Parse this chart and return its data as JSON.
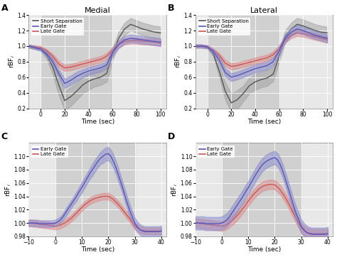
{
  "panel_A": {
    "title": "Medial",
    "label": "A",
    "ylabel": "rBF$_i$",
    "xlabel": "Time (sec)",
    "xlim": [
      -10,
      105
    ],
    "ylim": [
      0.2,
      1.4
    ],
    "yticks": [
      0.2,
      0.4,
      0.6,
      0.8,
      1.0,
      1.2,
      1.4
    ],
    "xticks": [
      0,
      20,
      40,
      60,
      80,
      100
    ],
    "shaded_region": [
      0,
      60
    ],
    "has_gray": true,
    "gray_x": [
      -10,
      -5,
      0,
      5,
      10,
      15,
      20,
      25,
      30,
      35,
      40,
      45,
      50,
      55,
      60,
      65,
      70,
      75,
      80,
      85,
      90,
      95,
      100
    ],
    "gray_mean": [
      1.0,
      0.98,
      0.96,
      0.88,
      0.73,
      0.5,
      0.3,
      0.35,
      0.42,
      0.5,
      0.55,
      0.58,
      0.6,
      0.65,
      0.9,
      1.1,
      1.22,
      1.28,
      1.25,
      1.22,
      1.2,
      1.18,
      1.17
    ],
    "gray_hi": [
      1.02,
      1.0,
      0.98,
      0.93,
      0.82,
      0.63,
      0.42,
      0.47,
      0.53,
      0.61,
      0.66,
      0.68,
      0.7,
      0.76,
      0.98,
      1.18,
      1.3,
      1.36,
      1.33,
      1.3,
      1.28,
      1.26,
      1.25
    ],
    "gray_lo": [
      0.98,
      0.96,
      0.94,
      0.83,
      0.64,
      0.37,
      0.18,
      0.23,
      0.31,
      0.39,
      0.44,
      0.48,
      0.5,
      0.54,
      0.82,
      1.02,
      1.14,
      1.2,
      1.17,
      1.14,
      1.12,
      1.1,
      1.09
    ],
    "blue_x": [
      -10,
      -5,
      0,
      5,
      10,
      15,
      20,
      25,
      30,
      35,
      40,
      45,
      50,
      55,
      60,
      65,
      70,
      75,
      80,
      85,
      90,
      95,
      100
    ],
    "blue_mean": [
      1.0,
      0.98,
      0.96,
      0.9,
      0.8,
      0.65,
      0.52,
      0.56,
      0.61,
      0.65,
      0.68,
      0.7,
      0.72,
      0.76,
      0.92,
      1.02,
      1.08,
      1.1,
      1.09,
      1.08,
      1.07,
      1.06,
      1.05
    ],
    "blue_hi": [
      1.02,
      1.0,
      0.98,
      0.93,
      0.84,
      0.7,
      0.58,
      0.62,
      0.67,
      0.7,
      0.73,
      0.75,
      0.77,
      0.81,
      0.97,
      1.07,
      1.13,
      1.15,
      1.14,
      1.13,
      1.12,
      1.11,
      1.1
    ],
    "blue_lo": [
      0.98,
      0.96,
      0.94,
      0.87,
      0.76,
      0.6,
      0.46,
      0.5,
      0.55,
      0.6,
      0.63,
      0.65,
      0.67,
      0.71,
      0.87,
      0.97,
      1.03,
      1.05,
      1.04,
      1.03,
      1.02,
      1.01,
      1.0
    ],
    "red_x": [
      -10,
      -5,
      0,
      5,
      10,
      15,
      20,
      25,
      30,
      35,
      40,
      45,
      50,
      55,
      60,
      65,
      70,
      75,
      80,
      85,
      90,
      95,
      100
    ],
    "red_mean": [
      1.0,
      0.99,
      0.98,
      0.94,
      0.87,
      0.77,
      0.72,
      0.73,
      0.75,
      0.77,
      0.79,
      0.81,
      0.83,
      0.87,
      0.95,
      1.02,
      1.06,
      1.07,
      1.07,
      1.06,
      1.06,
      1.05,
      1.04
    ],
    "red_hi": [
      1.02,
      1.01,
      1.0,
      0.96,
      0.9,
      0.81,
      0.76,
      0.77,
      0.79,
      0.81,
      0.83,
      0.85,
      0.87,
      0.91,
      0.99,
      1.06,
      1.1,
      1.11,
      1.11,
      1.1,
      1.1,
      1.09,
      1.08
    ],
    "red_lo": [
      0.98,
      0.97,
      0.96,
      0.92,
      0.84,
      0.73,
      0.68,
      0.69,
      0.71,
      0.73,
      0.75,
      0.77,
      0.79,
      0.83,
      0.91,
      0.98,
      1.02,
      1.03,
      1.03,
      1.02,
      1.02,
      1.01,
      1.0
    ]
  },
  "panel_B": {
    "title": "Lateral",
    "label": "B",
    "ylabel": "rBF$_i$",
    "xlabel": "Time (sec)",
    "xlim": [
      -10,
      105
    ],
    "ylim": [
      0.2,
      1.4
    ],
    "yticks": [
      0.2,
      0.4,
      0.6,
      0.8,
      1.0,
      1.2,
      1.4
    ],
    "xticks": [
      0,
      20,
      40,
      60,
      80,
      100
    ],
    "shaded_region": [
      0,
      60
    ],
    "has_gray": true,
    "gray_x": [
      -10,
      -5,
      0,
      5,
      10,
      15,
      20,
      25,
      30,
      35,
      40,
      45,
      50,
      55,
      60,
      65,
      70,
      75,
      80,
      85,
      90,
      95,
      100
    ],
    "gray_mean": [
      1.0,
      1.0,
      0.99,
      0.9,
      0.68,
      0.42,
      0.27,
      0.31,
      0.39,
      0.49,
      0.54,
      0.57,
      0.59,
      0.64,
      0.87,
      1.12,
      1.22,
      1.28,
      1.26,
      1.23,
      1.2,
      1.18,
      1.17
    ],
    "gray_hi": [
      1.02,
      1.02,
      1.01,
      0.93,
      0.75,
      0.53,
      0.39,
      0.43,
      0.49,
      0.59,
      0.64,
      0.67,
      0.69,
      0.73,
      0.94,
      1.2,
      1.3,
      1.36,
      1.34,
      1.31,
      1.28,
      1.26,
      1.25
    ],
    "gray_lo": [
      0.98,
      0.98,
      0.97,
      0.87,
      0.61,
      0.31,
      0.15,
      0.19,
      0.29,
      0.39,
      0.44,
      0.47,
      0.49,
      0.55,
      0.8,
      1.04,
      1.14,
      1.2,
      1.18,
      1.15,
      1.12,
      1.1,
      1.09
    ],
    "blue_x": [
      -10,
      -5,
      0,
      5,
      10,
      15,
      20,
      25,
      30,
      35,
      40,
      45,
      50,
      55,
      60,
      65,
      70,
      75,
      80,
      85,
      90,
      95,
      100
    ],
    "blue_mean": [
      1.0,
      1.0,
      0.99,
      0.93,
      0.82,
      0.66,
      0.6,
      0.62,
      0.65,
      0.68,
      0.71,
      0.73,
      0.75,
      0.8,
      0.94,
      1.1,
      1.18,
      1.22,
      1.2,
      1.17,
      1.14,
      1.12,
      1.1
    ],
    "blue_hi": [
      1.02,
      1.02,
      1.01,
      0.96,
      0.86,
      0.71,
      0.65,
      0.67,
      0.7,
      0.73,
      0.76,
      0.78,
      0.8,
      0.85,
      0.99,
      1.15,
      1.23,
      1.27,
      1.25,
      1.22,
      1.19,
      1.17,
      1.15
    ],
    "blue_lo": [
      0.98,
      0.98,
      0.97,
      0.9,
      0.78,
      0.61,
      0.55,
      0.57,
      0.6,
      0.63,
      0.66,
      0.68,
      0.7,
      0.75,
      0.89,
      1.05,
      1.13,
      1.17,
      1.15,
      1.12,
      1.09,
      1.07,
      1.05
    ],
    "red_x": [
      -10,
      -5,
      0,
      5,
      10,
      15,
      20,
      25,
      30,
      35,
      40,
      45,
      50,
      55,
      60,
      65,
      70,
      75,
      80,
      85,
      90,
      95,
      100
    ],
    "red_mean": [
      1.0,
      1.0,
      0.99,
      0.95,
      0.88,
      0.78,
      0.74,
      0.75,
      0.77,
      0.79,
      0.81,
      0.83,
      0.85,
      0.89,
      0.97,
      1.08,
      1.14,
      1.17,
      1.16,
      1.14,
      1.12,
      1.1,
      1.08
    ],
    "red_hi": [
      1.02,
      1.02,
      1.01,
      0.97,
      0.91,
      0.82,
      0.78,
      0.79,
      0.81,
      0.83,
      0.85,
      0.87,
      0.89,
      0.93,
      1.01,
      1.12,
      1.18,
      1.21,
      1.2,
      1.18,
      1.16,
      1.14,
      1.12
    ],
    "red_lo": [
      0.98,
      0.98,
      0.97,
      0.93,
      0.85,
      0.74,
      0.7,
      0.71,
      0.73,
      0.75,
      0.77,
      0.79,
      0.81,
      0.85,
      0.93,
      1.04,
      1.1,
      1.13,
      1.12,
      1.1,
      1.08,
      1.06,
      1.04
    ]
  },
  "panel_C": {
    "title": "",
    "label": "C",
    "ylabel": "rBF$_i$",
    "xlabel": "Time (sec)",
    "xlim": [
      -10,
      42
    ],
    "ylim": [
      0.98,
      1.12
    ],
    "yticks": [
      0.98,
      1.0,
      1.02,
      1.04,
      1.06,
      1.08,
      1.1
    ],
    "xticks": [
      -10,
      0,
      10,
      20,
      30,
      40
    ],
    "shaded_region": [
      0,
      30
    ],
    "has_gray": false,
    "blue_x": [
      -10,
      -9,
      -8,
      -7,
      -6,
      -5,
      -4,
      -3,
      -2,
      -1,
      0,
      1,
      2,
      3,
      4,
      5,
      6,
      7,
      8,
      9,
      10,
      11,
      12,
      13,
      14,
      15,
      16,
      17,
      18,
      19,
      20,
      21,
      22,
      23,
      24,
      25,
      26,
      27,
      28,
      29,
      30,
      31,
      32,
      33,
      34,
      35,
      36,
      37,
      38,
      39,
      40
    ],
    "blue_mean": [
      1.0,
      1.0,
      1.0,
      1.0,
      0.999,
      0.999,
      0.999,
      0.999,
      0.999,
      0.999,
      1.0,
      1.002,
      1.005,
      1.01,
      1.016,
      1.022,
      1.028,
      1.034,
      1.04,
      1.047,
      1.053,
      1.06,
      1.067,
      1.074,
      1.08,
      1.086,
      1.092,
      1.097,
      1.1,
      1.103,
      1.104,
      1.1,
      1.092,
      1.082,
      1.07,
      1.058,
      1.045,
      1.032,
      1.02,
      1.01,
      1.0,
      0.994,
      0.99,
      0.988,
      0.987,
      0.987,
      0.987,
      0.987,
      0.987,
      0.987,
      0.988
    ],
    "blue_hi": [
      1.005,
      1.005,
      1.005,
      1.005,
      1.004,
      1.004,
      1.004,
      1.004,
      1.004,
      1.004,
      1.005,
      1.007,
      1.01,
      1.015,
      1.022,
      1.028,
      1.034,
      1.04,
      1.047,
      1.054,
      1.061,
      1.068,
      1.075,
      1.082,
      1.089,
      1.095,
      1.101,
      1.106,
      1.11,
      1.113,
      1.114,
      1.11,
      1.102,
      1.092,
      1.08,
      1.067,
      1.054,
      1.041,
      1.029,
      1.018,
      1.008,
      1.002,
      0.998,
      0.996,
      0.995,
      0.995,
      0.995,
      0.995,
      0.995,
      0.995,
      0.996
    ],
    "blue_lo": [
      0.995,
      0.995,
      0.995,
      0.995,
      0.994,
      0.994,
      0.994,
      0.994,
      0.994,
      0.994,
      0.995,
      0.997,
      1.0,
      1.005,
      1.01,
      1.016,
      1.022,
      1.028,
      1.033,
      1.04,
      1.045,
      1.052,
      1.059,
      1.066,
      1.071,
      1.077,
      1.083,
      1.088,
      1.09,
      1.093,
      1.094,
      1.09,
      1.082,
      1.072,
      1.06,
      1.049,
      1.036,
      1.023,
      1.011,
      1.002,
      0.992,
      0.986,
      0.982,
      0.98,
      0.979,
      0.979,
      0.979,
      0.979,
      0.979,
      0.979,
      0.98
    ],
    "red_x": [
      -10,
      -9,
      -8,
      -7,
      -6,
      -5,
      -4,
      -3,
      -2,
      -1,
      0,
      1,
      2,
      3,
      4,
      5,
      6,
      7,
      8,
      9,
      10,
      11,
      12,
      13,
      14,
      15,
      16,
      17,
      18,
      19,
      20,
      21,
      22,
      23,
      24,
      25,
      26,
      27,
      28,
      29,
      30,
      31,
      32,
      33,
      34,
      35,
      36,
      37,
      38,
      39,
      40
    ],
    "red_mean": [
      1.0,
      1.0,
      0.999,
      0.999,
      0.998,
      0.998,
      0.997,
      0.997,
      0.996,
      0.996,
      0.995,
      0.996,
      0.997,
      0.999,
      1.001,
      1.004,
      1.007,
      1.011,
      1.015,
      1.019,
      1.023,
      1.027,
      1.03,
      1.033,
      1.035,
      1.037,
      1.038,
      1.039,
      1.04,
      1.04,
      1.04,
      1.038,
      1.035,
      1.031,
      1.027,
      1.022,
      1.017,
      1.012,
      1.007,
      1.001,
      0.996,
      0.993,
      0.99,
      0.989,
      0.988,
      0.988,
      0.988,
      0.988,
      0.988,
      0.988,
      0.988
    ],
    "red_hi": [
      1.005,
      1.005,
      1.004,
      1.004,
      1.003,
      1.003,
      1.002,
      1.002,
      1.001,
      1.001,
      1.0,
      1.001,
      1.002,
      1.004,
      1.006,
      1.009,
      1.012,
      1.016,
      1.02,
      1.024,
      1.028,
      1.032,
      1.035,
      1.038,
      1.04,
      1.042,
      1.043,
      1.044,
      1.045,
      1.045,
      1.045,
      1.043,
      1.04,
      1.036,
      1.032,
      1.027,
      1.022,
      1.017,
      1.012,
      1.006,
      1.001,
      0.998,
      0.995,
      0.994,
      0.993,
      0.993,
      0.993,
      0.993,
      0.993,
      0.993,
      0.993
    ],
    "red_lo": [
      0.995,
      0.995,
      0.994,
      0.994,
      0.993,
      0.993,
      0.992,
      0.992,
      0.991,
      0.991,
      0.99,
      0.991,
      0.992,
      0.994,
      0.996,
      0.999,
      1.002,
      1.006,
      1.01,
      1.014,
      1.018,
      1.022,
      1.025,
      1.028,
      1.03,
      1.032,
      1.033,
      1.034,
      1.035,
      1.035,
      1.035,
      1.033,
      1.03,
      1.026,
      1.022,
      1.017,
      1.012,
      1.007,
      1.002,
      0.996,
      0.991,
      0.988,
      0.985,
      0.984,
      0.983,
      0.983,
      0.983,
      0.983,
      0.983,
      0.983,
      0.983
    ]
  },
  "panel_D": {
    "title": "",
    "label": "D",
    "ylabel": "rBF$_i$",
    "xlabel": "Time (sec)",
    "xlim": [
      -10,
      42
    ],
    "ylim": [
      0.98,
      1.12
    ],
    "yticks": [
      0.98,
      1.0,
      1.02,
      1.04,
      1.06,
      1.08,
      1.1
    ],
    "xticks": [
      -10,
      0,
      10,
      20,
      30,
      40
    ],
    "shaded_region": [
      0,
      30
    ],
    "has_gray": false,
    "blue_x": [
      -10,
      -9,
      -8,
      -7,
      -6,
      -5,
      -4,
      -3,
      -2,
      -1,
      0,
      1,
      2,
      3,
      4,
      5,
      6,
      7,
      8,
      9,
      10,
      11,
      12,
      13,
      14,
      15,
      16,
      17,
      18,
      19,
      20,
      21,
      22,
      23,
      24,
      25,
      26,
      27,
      28,
      29,
      30,
      31,
      32,
      33,
      34,
      35,
      36,
      37,
      38,
      39,
      40
    ],
    "blue_mean": [
      1.0,
      1.0,
      1.0,
      1.0,
      0.999,
      0.999,
      0.999,
      0.999,
      0.999,
      0.999,
      1.0,
      1.002,
      1.005,
      1.01,
      1.016,
      1.022,
      1.028,
      1.034,
      1.04,
      1.047,
      1.053,
      1.06,
      1.067,
      1.074,
      1.08,
      1.086,
      1.09,
      1.093,
      1.095,
      1.097,
      1.098,
      1.095,
      1.088,
      1.078,
      1.066,
      1.053,
      1.04,
      1.027,
      1.015,
      1.005,
      0.995,
      0.99,
      0.986,
      0.984,
      0.983,
      0.983,
      0.983,
      0.983,
      0.983,
      0.983,
      0.984
    ],
    "blue_hi": [
      1.01,
      1.01,
      1.01,
      1.01,
      1.009,
      1.009,
      1.009,
      1.009,
      1.009,
      1.009,
      1.01,
      1.012,
      1.015,
      1.02,
      1.026,
      1.032,
      1.038,
      1.044,
      1.05,
      1.057,
      1.063,
      1.07,
      1.077,
      1.084,
      1.09,
      1.096,
      1.1,
      1.103,
      1.105,
      1.107,
      1.108,
      1.105,
      1.098,
      1.088,
      1.076,
      1.063,
      1.05,
      1.037,
      1.025,
      1.015,
      1.005,
      1.0,
      0.996,
      0.994,
      0.993,
      0.993,
      0.993,
      0.993,
      0.993,
      0.993,
      0.994
    ],
    "blue_lo": [
      0.99,
      0.99,
      0.99,
      0.99,
      0.989,
      0.989,
      0.989,
      0.989,
      0.989,
      0.989,
      0.99,
      0.992,
      0.995,
      1.0,
      1.006,
      1.012,
      1.018,
      1.024,
      1.03,
      1.037,
      1.043,
      1.05,
      1.057,
      1.064,
      1.07,
      1.076,
      1.08,
      1.083,
      1.085,
      1.087,
      1.088,
      1.085,
      1.078,
      1.068,
      1.056,
      1.043,
      1.03,
      1.017,
      1.005,
      0.995,
      0.985,
      0.98,
      0.976,
      0.974,
      0.973,
      0.973,
      0.973,
      0.973,
      0.973,
      0.973,
      0.974
    ],
    "red_x": [
      -10,
      -9,
      -8,
      -7,
      -6,
      -5,
      -4,
      -3,
      -2,
      -1,
      0,
      1,
      2,
      3,
      4,
      5,
      6,
      7,
      8,
      9,
      10,
      11,
      12,
      13,
      14,
      15,
      16,
      17,
      18,
      19,
      20,
      21,
      22,
      23,
      24,
      25,
      26,
      27,
      28,
      29,
      30,
      31,
      32,
      33,
      34,
      35,
      36,
      37,
      38,
      39,
      40
    ],
    "red_mean": [
      1.0,
      1.0,
      0.999,
      0.999,
      0.998,
      0.998,
      0.997,
      0.997,
      0.996,
      0.996,
      0.995,
      0.996,
      0.998,
      1.001,
      1.004,
      1.008,
      1.012,
      1.017,
      1.022,
      1.027,
      1.033,
      1.038,
      1.043,
      1.047,
      1.051,
      1.054,
      1.056,
      1.057,
      1.058,
      1.058,
      1.057,
      1.054,
      1.05,
      1.044,
      1.038,
      1.031,
      1.023,
      1.015,
      1.007,
      1.0,
      0.993,
      0.989,
      0.986,
      0.985,
      0.984,
      0.984,
      0.984,
      0.984,
      0.984,
      0.984,
      0.984
    ],
    "red_hi": [
      1.007,
      1.007,
      1.006,
      1.006,
      1.005,
      1.005,
      1.004,
      1.004,
      1.003,
      1.003,
      1.002,
      1.003,
      1.005,
      1.008,
      1.011,
      1.015,
      1.019,
      1.024,
      1.029,
      1.034,
      1.04,
      1.045,
      1.05,
      1.054,
      1.058,
      1.061,
      1.063,
      1.064,
      1.065,
      1.065,
      1.064,
      1.061,
      1.057,
      1.051,
      1.045,
      1.038,
      1.03,
      1.022,
      1.014,
      1.007,
      1.0,
      0.996,
      0.993,
      0.992,
      0.991,
      0.991,
      0.991,
      0.991,
      0.991,
      0.991,
      0.991
    ],
    "red_lo": [
      0.993,
      0.993,
      0.992,
      0.992,
      0.991,
      0.991,
      0.99,
      0.99,
      0.989,
      0.989,
      0.988,
      0.989,
      0.991,
      0.994,
      0.997,
      1.001,
      1.005,
      1.01,
      1.015,
      1.02,
      1.026,
      1.031,
      1.036,
      1.04,
      1.044,
      1.047,
      1.049,
      1.05,
      1.051,
      1.051,
      1.05,
      1.047,
      1.043,
      1.037,
      1.031,
      1.024,
      1.016,
      1.008,
      1.0,
      0.993,
      0.986,
      0.982,
      0.979,
      0.978,
      0.977,
      0.977,
      0.977,
      0.977,
      0.977,
      0.977,
      0.977
    ]
  },
  "colors": {
    "gray_line": "#555555",
    "gray_fill": "#999999",
    "blue_line": "#5555bb",
    "blue_fill": "#8888cc",
    "red_line": "#cc5555",
    "red_fill": "#dd8888",
    "bg": "#e8e8e8",
    "shade": "#d0d0d0",
    "grid": "#ffffff"
  }
}
